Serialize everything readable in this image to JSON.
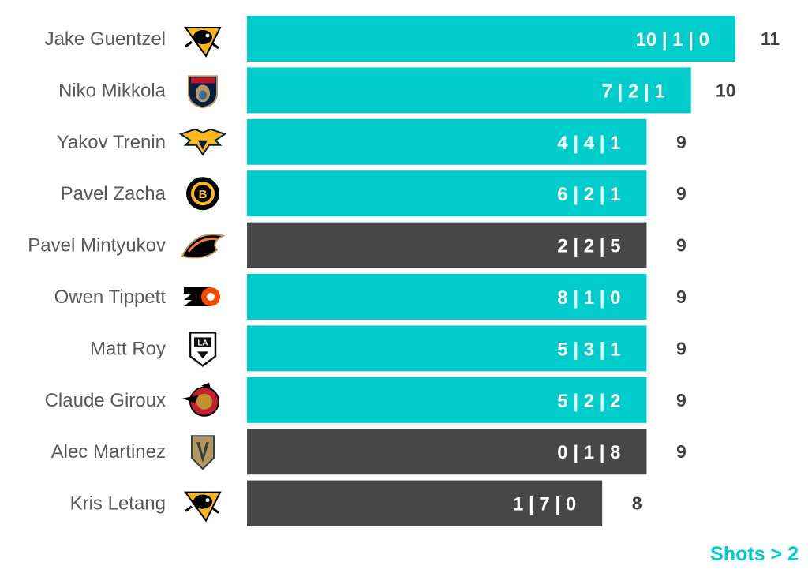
{
  "chart_data": {
    "type": "bar",
    "orientation": "horizontal",
    "xlim": [
      0,
      11
    ],
    "colors": {
      "teal": "#00CCCC",
      "dark": "#474747",
      "name_text": "#595959",
      "total_text": "#404040"
    },
    "rows": [
      {
        "player": "Jake Guentzel",
        "team_logo": "penguins-logo",
        "total": 11,
        "breakdown": "10 | 1 | 0",
        "color": "teal"
      },
      {
        "player": "Niko Mikkola",
        "team_logo": "panthers-logo",
        "total": 10,
        "breakdown": "7 | 2 | 1",
        "color": "teal"
      },
      {
        "player": "Yakov Trenin",
        "team_logo": "predators-logo",
        "total": 9,
        "breakdown": "4 | 4 | 1",
        "color": "teal"
      },
      {
        "player": "Pavel Zacha",
        "team_logo": "bruins-logo",
        "total": 9,
        "breakdown": "6 | 2 | 1",
        "color": "teal"
      },
      {
        "player": "Pavel Mintyukov",
        "team_logo": "ducks-logo",
        "total": 9,
        "breakdown": "2 | 2 | 5",
        "color": "dark"
      },
      {
        "player": "Owen Tippett",
        "team_logo": "flyers-logo",
        "total": 9,
        "breakdown": "8 | 1 | 0",
        "color": "teal"
      },
      {
        "player": "Matt Roy",
        "team_logo": "kings-logo",
        "total": 9,
        "breakdown": "5 | 3 | 1",
        "color": "teal"
      },
      {
        "player": "Claude Giroux",
        "team_logo": "senators-logo",
        "total": 9,
        "breakdown": "5 | 2 | 2",
        "color": "teal"
      },
      {
        "player": "Alec Martinez",
        "team_logo": "golden-knights-logo",
        "total": 9,
        "breakdown": "0 | 1 | 8",
        "color": "dark"
      },
      {
        "player": "Kris Letang",
        "team_logo": "penguins-logo",
        "total": 8,
        "breakdown": "1 | 7 | 0",
        "color": "dark"
      }
    ],
    "footnote": "Shots > 2"
  }
}
